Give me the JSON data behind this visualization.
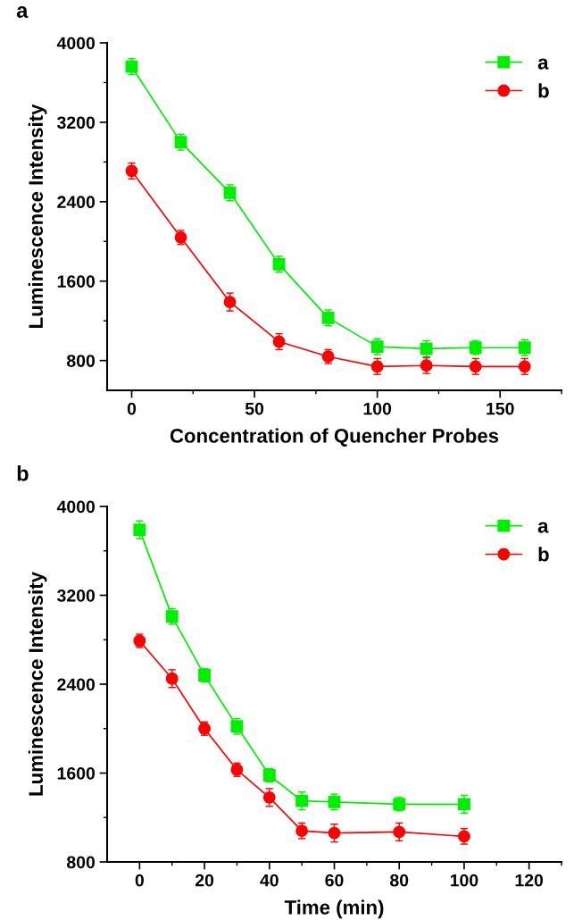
{
  "chart_data": [
    {
      "type": "line",
      "title": "a",
      "xlabel": "Concentration of Quencher Probes",
      "ylabel": "Luminescence Intensity",
      "xlim": [
        -10,
        175
      ],
      "xticks": [
        0,
        50,
        100,
        150
      ],
      "ylim": [
        500,
        4000
      ],
      "yticks": [
        800,
        1600,
        2400,
        3200,
        4000
      ],
      "legend": "top right",
      "grid": false,
      "x": [
        0,
        20,
        40,
        60,
        80,
        100,
        120,
        140,
        160
      ],
      "series": [
        {
          "name": "a",
          "color": "#00ee00",
          "marker": "square",
          "values": [
            3760,
            3000,
            2490,
            1770,
            1230,
            940,
            920,
            930,
            930
          ],
          "errors": [
            80,
            80,
            80,
            80,
            80,
            80,
            80,
            70,
            80
          ]
        },
        {
          "name": "b",
          "color": "#ff0000",
          "marker": "circle",
          "values": [
            2710,
            2040,
            1390,
            990,
            840,
            740,
            750,
            740,
            740
          ],
          "errors": [
            80,
            70,
            90,
            80,
            70,
            80,
            80,
            80,
            80
          ]
        }
      ]
    },
    {
      "type": "line",
      "title": "b",
      "xlabel": "Time (min)",
      "ylabel": "Luminescence Intensity",
      "xlim": [
        -10,
        130
      ],
      "xticks": [
        0,
        20,
        40,
        60,
        80,
        100,
        120
      ],
      "ylim": [
        800,
        4000
      ],
      "yticks": [
        800,
        1600,
        2400,
        3200,
        4000
      ],
      "legend": "top right",
      "grid": false,
      "x": [
        0,
        10,
        20,
        30,
        40,
        50,
        60,
        80,
        100
      ],
      "series": [
        {
          "name": "a",
          "color": "#00ee00",
          "marker": "square",
          "values": [
            3790,
            3010,
            2480,
            2020,
            1580,
            1350,
            1340,
            1320,
            1320
          ],
          "errors": [
            80,
            70,
            60,
            70,
            60,
            80,
            70,
            60,
            80
          ]
        },
        {
          "name": "b",
          "color": "#ff0000",
          "marker": "circle",
          "values": [
            2790,
            2450,
            2000,
            1630,
            1380,
            1080,
            1060,
            1070,
            1030
          ],
          "errors": [
            60,
            80,
            60,
            60,
            80,
            70,
            80,
            80,
            70
          ]
        }
      ]
    }
  ]
}
